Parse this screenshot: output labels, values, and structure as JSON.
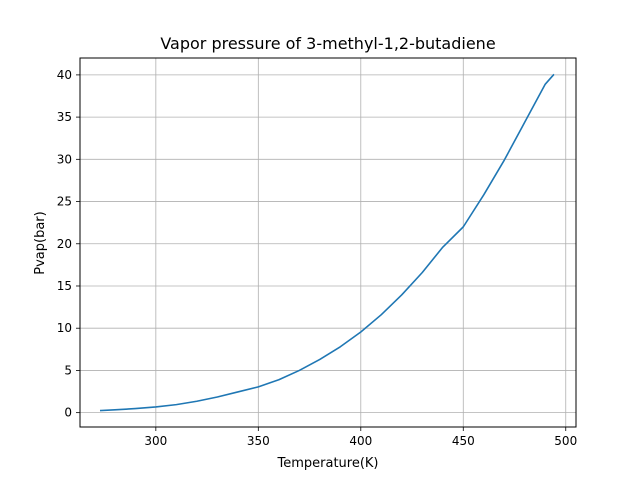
{
  "chart_data": {
    "type": "line",
    "title": "Vapor pressure of 3-methyl-1,2-butadiene",
    "xlabel": "Temperature(K)",
    "ylabel": "Pvap(bar)",
    "xlim": [
      263,
      505
    ],
    "ylim": [
      -1.7,
      42.0
    ],
    "grid": true,
    "legend": "none",
    "xticks": [
      300,
      350,
      400,
      450,
      500
    ],
    "yticks": [
      0,
      5,
      10,
      15,
      20,
      25,
      30,
      35,
      40
    ],
    "line_color": "#1f77b4",
    "series": [
      {
        "x": [
          273.15,
          280,
          290,
          300,
          310,
          320,
          330,
          340,
          350,
          360,
          370,
          380,
          390,
          400,
          410,
          420,
          430,
          440,
          450,
          460,
          470,
          480,
          490,
          494
        ],
        "y": [
          0.25,
          0.33,
          0.48,
          0.68,
          0.95,
          1.35,
          1.85,
          2.45,
          3.05,
          3.9,
          5.0,
          6.3,
          7.8,
          9.55,
          11.6,
          13.95,
          16.6,
          19.6,
          22.0,
          25.8,
          29.9,
          34.4,
          38.9,
          40.0
        ]
      }
    ]
  }
}
